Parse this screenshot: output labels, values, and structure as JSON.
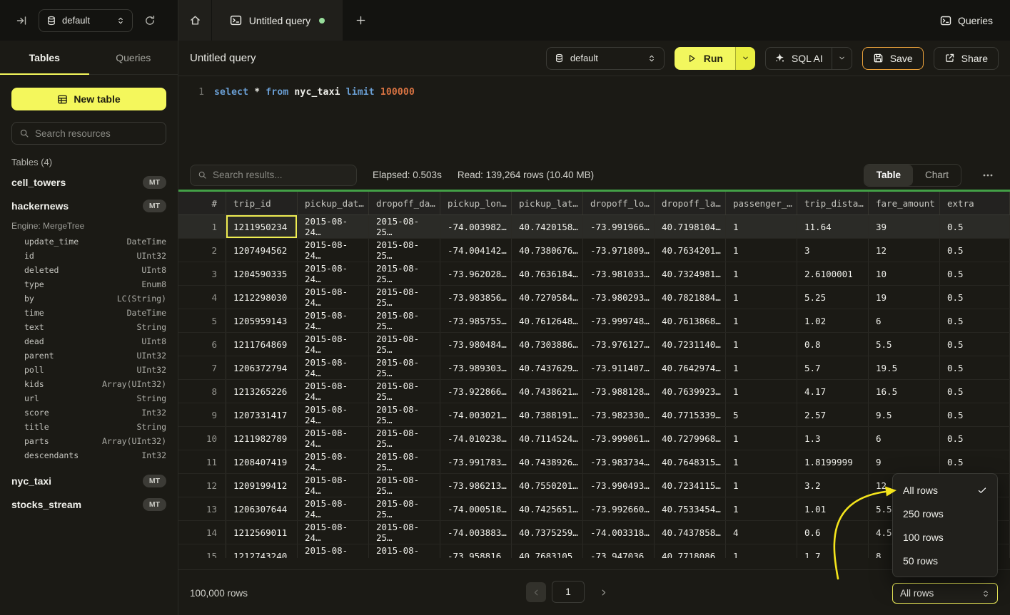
{
  "topbar": {
    "database_selector": {
      "value": "default"
    },
    "active_tab": {
      "label": "Untitled query"
    },
    "queries_button": "Queries"
  },
  "sidebar": {
    "tabs": {
      "tables": "Tables",
      "queries": "Queries"
    },
    "new_table_button": "New table",
    "search_placeholder": "Search resources",
    "section_title": "Tables (4)",
    "tables": [
      {
        "name": "cell_towers",
        "badge": "MT"
      },
      {
        "name": "hackernews",
        "badge": "MT",
        "engine": "Engine: MergeTree",
        "columns": [
          {
            "name": "update_time",
            "type": "DateTime"
          },
          {
            "name": "id",
            "type": "UInt32"
          },
          {
            "name": "deleted",
            "type": "UInt8"
          },
          {
            "name": "type",
            "type": "Enum8"
          },
          {
            "name": "by",
            "type": "LC(String)"
          },
          {
            "name": "time",
            "type": "DateTime"
          },
          {
            "name": "text",
            "type": "String"
          },
          {
            "name": "dead",
            "type": "UInt8"
          },
          {
            "name": "parent",
            "type": "UInt32"
          },
          {
            "name": "poll",
            "type": "UInt32"
          },
          {
            "name": "kids",
            "type": "Array(UInt32)"
          },
          {
            "name": "url",
            "type": "String"
          },
          {
            "name": "score",
            "type": "Int32"
          },
          {
            "name": "title",
            "type": "String"
          },
          {
            "name": "parts",
            "type": "Array(UInt32)"
          },
          {
            "name": "descendants",
            "type": "Int32"
          }
        ]
      },
      {
        "name": "nyc_taxi",
        "badge": "MT"
      },
      {
        "name": "stocks_stream",
        "badge": "MT"
      }
    ]
  },
  "query_header": {
    "title": "Untitled query",
    "database_selector": {
      "value": "default"
    },
    "run_button": "Run",
    "sql_ai_button": "SQL AI",
    "save_button": "Save",
    "share_button": "Share"
  },
  "editor": {
    "line_number": "1",
    "tokens": [
      {
        "text": "select",
        "type": "keyword"
      },
      {
        "text": "*",
        "type": "operator"
      },
      {
        "text": "from",
        "type": "keyword"
      },
      {
        "text": "nyc_taxi",
        "type": "identifier"
      },
      {
        "text": "limit",
        "type": "keyword"
      },
      {
        "text": "100000",
        "type": "number"
      }
    ]
  },
  "results": {
    "search_placeholder": "Search results...",
    "elapsed": "Elapsed: 0.503s",
    "read_stats": "Read: 139,264 rows (10.40 MB)",
    "view_toggle": {
      "options": [
        "Table",
        "Chart"
      ],
      "active": "Table"
    },
    "table": {
      "columns": [
        "#",
        "trip_id",
        "pickup_dat…",
        "dropoff_da…",
        "pickup_lon…",
        "pickup_lat…",
        "dropoff_lo…",
        "dropoff_la…",
        "passenger_…",
        "trip_dista…",
        "fare_amount",
        "extra"
      ],
      "selected_row_index": 0,
      "selected_cell_column_index": 0,
      "rows": [
        [
          "1211950234",
          "2015-08-24…",
          "2015-08-25…",
          "-74.003982…",
          "40.7420158…",
          "-73.991966…",
          "40.7198104…",
          "1",
          "11.64",
          "39",
          "0.5"
        ],
        [
          "1207494562",
          "2015-08-24…",
          "2015-08-25…",
          "-74.004142…",
          "40.7380676…",
          "-73.971809…",
          "40.7634201…",
          "1",
          "3",
          "12",
          "0.5"
        ],
        [
          "1204590335",
          "2015-08-24…",
          "2015-08-25…",
          "-73.962028…",
          "40.7636184…",
          "-73.981033…",
          "40.7324981…",
          "1",
          "2.6100001",
          "10",
          "0.5"
        ],
        [
          "1212298030",
          "2015-08-24…",
          "2015-08-25…",
          "-73.983856…",
          "40.7270584…",
          "-73.980293…",
          "40.7821884…",
          "1",
          "5.25",
          "19",
          "0.5"
        ],
        [
          "1205959143",
          "2015-08-24…",
          "2015-08-25…",
          "-73.985755…",
          "40.7612648…",
          "-73.999748…",
          "40.7613868…",
          "1",
          "1.02",
          "6",
          "0.5"
        ],
        [
          "1211764869",
          "2015-08-24…",
          "2015-08-25…",
          "-73.980484…",
          "40.7303886…",
          "-73.976127…",
          "40.7231140…",
          "1",
          "0.8",
          "5.5",
          "0.5"
        ],
        [
          "1206372794",
          "2015-08-24…",
          "2015-08-25…",
          "-73.989303…",
          "40.7437629…",
          "-73.911407…",
          "40.7642974…",
          "1",
          "5.7",
          "19.5",
          "0.5"
        ],
        [
          "1213265226",
          "2015-08-24…",
          "2015-08-25…",
          "-73.922866…",
          "40.7438621…",
          "-73.988128…",
          "40.7639923…",
          "1",
          "4.17",
          "16.5",
          "0.5"
        ],
        [
          "1207331417",
          "2015-08-24…",
          "2015-08-25…",
          "-74.003021…",
          "40.7388191…",
          "-73.982330…",
          "40.7715339…",
          "5",
          "2.57",
          "9.5",
          "0.5"
        ],
        [
          "1211982789",
          "2015-08-24…",
          "2015-08-25…",
          "-74.010238…",
          "40.7114524…",
          "-73.999061…",
          "40.7279968…",
          "1",
          "1.3",
          "6",
          "0.5"
        ],
        [
          "1208407419",
          "2015-08-24…",
          "2015-08-25…",
          "-73.991783…",
          "40.7438926…",
          "-73.983734…",
          "40.7648315…",
          "1",
          "1.8199999",
          "9",
          "0.5"
        ],
        [
          "1209199412",
          "2015-08-24…",
          "2015-08-25…",
          "-73.986213…",
          "40.7550201…",
          "-73.990493…",
          "40.7234115…",
          "1",
          "3.2",
          "12",
          "0.5"
        ],
        [
          "1206307644",
          "2015-08-24…",
          "2015-08-25…",
          "-74.000518…",
          "40.7425651…",
          "-73.992660…",
          "40.7533454…",
          "1",
          "1.01",
          "5.5",
          "0.5"
        ],
        [
          "1212569011",
          "2015-08-24…",
          "2015-08-25…",
          "-74.003883…",
          "40.7375259…",
          "-74.003318…",
          "40.7437858…",
          "4",
          "0.6",
          "4.5",
          "0.5"
        ],
        [
          "1212743240",
          "2015-08-24…",
          "2015-08-25…",
          "-73.958816…",
          "40.7683105…",
          "-73.947036…",
          "40.7718086…",
          "1",
          "1.7",
          "8",
          "0.5"
        ]
      ]
    }
  },
  "rows_menu": {
    "items": [
      {
        "label": "All rows",
        "checked": true
      },
      {
        "label": "250 rows",
        "checked": false
      },
      {
        "label": "100 rows",
        "checked": false
      },
      {
        "label": "50 rows",
        "checked": false
      }
    ]
  },
  "footer": {
    "total_rows": "100,000 rows",
    "current_page": "1",
    "page_size_selector": "All rows"
  },
  "icons": {
    "collapse-sidebar-icon": "arrow-to-line",
    "database-icon": "cylinder",
    "refresh-icon": "circular-arrow",
    "home-icon": "house",
    "terminal-icon": "prompt-box",
    "plus-icon": "+",
    "play-icon": "triangle",
    "chevron-down-icon": "v",
    "sparkles-icon": "four-point-star",
    "save-icon": "floppy-disk",
    "share-icon": "box-arrow-out",
    "search-icon": "magnifier",
    "table-grid-icon": "grid",
    "more-horizontal-icon": "•••",
    "check-icon": "✓",
    "updown-icon": "chevrons",
    "annotation-arrow": "curved-yellow-arrow"
  },
  "colors": {
    "accent_yellow": "#f4f75c",
    "run_yellow": "#f2f75e",
    "save_border_amber": "#eea43c",
    "progress_green": "#43a047",
    "tab_dot_green": "#97dd9b",
    "annotation_arrow_yellow": "#f4e41c",
    "sql_keyword_blue": "#6ba0d6",
    "sql_number_orange": "#d97342",
    "panel_background": "#1b1a15",
    "topbar_background": "#131310"
  }
}
